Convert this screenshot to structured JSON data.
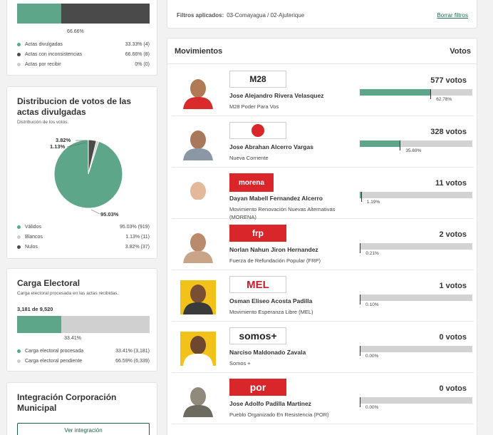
{
  "colors": {
    "accent": "#5da689",
    "dark": "#4a4a4a",
    "light": "#cccccc",
    "link": "#1f6b55"
  },
  "actas": {
    "bar_label": "66.66%",
    "fractions": {
      "divulgadas": 0.3333,
      "inconsistencias": 0.6666
    },
    "legend": [
      {
        "name": "Actas divulgadas",
        "value": "33.33% (4)",
        "color": "#5da689"
      },
      {
        "name": "Actas con inconsistencias",
        "value": "66.66% (8)",
        "color": "#4a4a4a"
      },
      {
        "name": "Actas por recibir",
        "value": "0% (0)",
        "color": "#cccccc"
      }
    ]
  },
  "distribucion": {
    "title": "Distribucion de votos de las actas divulgadas",
    "subtitle": "Distribución de los votos.",
    "pie_labels": {
      "nulos": "3.82%",
      "blancos": "1.13%",
      "validos": "95.03%"
    },
    "legend": [
      {
        "name": "Válidos",
        "value": "95.03% (919)",
        "color": "#5da689"
      },
      {
        "name": "Blancos",
        "value": "1.13% (11)",
        "color": "#cccccc"
      },
      {
        "name": "Nulos",
        "value": "3.82% (37)",
        "color": "#4a4a4a"
      }
    ]
  },
  "chart_data": {
    "type": "pie",
    "categories": [
      "Válidos",
      "Blancos",
      "Nulos"
    ],
    "values": [
      95.03,
      1.13,
      3.82
    ],
    "counts": [
      919,
      11,
      37
    ]
  },
  "carga": {
    "title": "Carga Electoral",
    "subtitle": "Carga electoral procesada en las actas recibidas.",
    "count_label": "3,181 de 9,520",
    "bar_label": "33.41%",
    "fraction": 0.3341,
    "legend": [
      {
        "name": "Carga electoral procesada",
        "value": "33.41% (3,181)",
        "color": "#5da689"
      },
      {
        "name": "Carga electoral pendiente",
        "value": "66.59% (6,339)",
        "color": "#cccccc"
      }
    ]
  },
  "integracion": {
    "title": "Integración Corporación Municipal",
    "button": "Ver integración"
  },
  "filter": {
    "label": "Filtros aplicados:",
    "value": "03-Comayagua / 02-Ajuterique",
    "clear": "Borrar filtros"
  },
  "movimientos": {
    "title": "Movimientos",
    "votes_header": "Votos",
    "rows": [
      {
        "name": "Jose Alejandro Rivera Velasquez",
        "party": "M28 Poder Para Vos",
        "votes": "577 votos",
        "pct_label": "62.78%",
        "pct": 62.78,
        "logo": "M28",
        "logo_style": "m28",
        "skin": "#b07a55",
        "shirt": "#d92b2b",
        "bg": "#ffffff"
      },
      {
        "name": "Jose Abrahan Alcerro Vargas",
        "party": "Nueva Corriente",
        "votes": "328 votos",
        "pct_label": "35.69%",
        "pct": 35.69,
        "logo": "NC",
        "logo_style": "nc",
        "skin": "#a9775a",
        "shirt": "#8c97a6",
        "bg": "#ffffff"
      },
      {
        "name": "Dayan Mabell Fernandez Alcerro",
        "party": "Movimiento Renovación Nuevas Alternativas (MORENA)",
        "votes": "11 votos",
        "pct_label": "1.19%",
        "pct": 1.19,
        "logo": "morena",
        "logo_style": "morena",
        "skin": "#e4b89a",
        "shirt": "#ffffff",
        "bg": "#ffffff"
      },
      {
        "name": "Norlan Nahun Jiron Hernandez",
        "party": "Fuerza de Refundación Popular (FRP)",
        "votes": "2 votos",
        "pct_label": "0.21%",
        "pct": 0.21,
        "logo": "frp",
        "logo_style": "frp",
        "skin": "#b98a6b",
        "shirt": "#c9a487",
        "bg": "#ffffff"
      },
      {
        "name": "Osman Eliseo Acosta Padilla",
        "party": "Movimiento Esperanza Libre (MEL)",
        "votes": "1 votos",
        "pct_label": "0.10%",
        "pct": 0.1,
        "logo": "MEL",
        "logo_style": "mel",
        "skin": "#7a4e32",
        "shirt": "#3a3a3a",
        "bg": "#f2c21b"
      },
      {
        "name": "Narciso Maldonado Zavala",
        "party": "Somos +",
        "votes": "0 votos",
        "pct_label": "0.00%",
        "pct": 0.0,
        "logo": "somos+",
        "logo_style": "somos",
        "skin": "#6e472f",
        "shirt": "#ffffff",
        "bg": "#f2c21b"
      },
      {
        "name": "Jose Adolfo Padilla Martinez",
        "party": "Pueblo Organizado En Resistencia (POR)",
        "votes": "0 votos",
        "pct_label": "0.00%",
        "pct": 0.0,
        "logo": "por",
        "logo_style": "por",
        "skin": "#8f8a7c",
        "shirt": "#6d6a60",
        "bg": "#ffffff"
      }
    ]
  }
}
